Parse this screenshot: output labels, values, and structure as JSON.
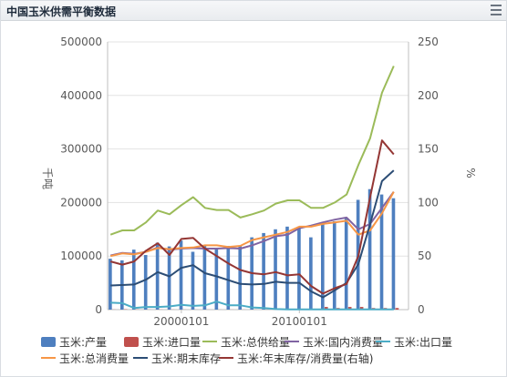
{
  "header": {
    "title": "中国玉米供需平衡数据"
  },
  "icons": {
    "menu": "hamburger-menu-icon"
  },
  "chart_data": {
    "type": "bar+line",
    "left_axis": {
      "label": "千吨",
      "ticks": [
        "0",
        "100000",
        "200000",
        "300000",
        "400000",
        "500000"
      ],
      "range": [
        0,
        500000
      ]
    },
    "right_axis": {
      "label": "%",
      "ticks": [
        "0",
        "50",
        "100",
        "150",
        "200",
        "250"
      ],
      "range": [
        0,
        250
      ]
    },
    "x_axis": {
      "start": 1993.75,
      "end": 2019.25,
      "tick_labels": [
        {
          "label": "20000101",
          "x": 2000
        },
        {
          "label": "20100101",
          "x": 2010
        }
      ]
    },
    "bar_series": [
      {
        "name": "玉米:产量",
        "color": "#4e7fbf",
        "x": [
          1994,
          1995,
          1996,
          1997,
          1998,
          1999,
          2000,
          2001,
          2002,
          2003,
          2004,
          2005,
          2006,
          2007,
          2008,
          2009,
          2010,
          2011,
          2012,
          2013,
          2014,
          2015,
          2016,
          2017,
          2018
        ],
        "values": [
          95000,
          92000,
          112000,
          102000,
          125000,
          118000,
          129000,
          108000,
          120000,
          115000,
          119000,
          120000,
          135000,
          143000,
          150000,
          155000,
          155000,
          135000,
          160000,
          165000,
          170000,
          205000,
          225000,
          215000,
          208000
        ]
      },
      {
        "name": "玉米:进口量",
        "color": "#c0504d",
        "x": [
          1994,
          1995,
          1996,
          1997,
          1998,
          1999,
          2000,
          2001,
          2002,
          2003,
          2004,
          2005,
          2006,
          2007,
          2008,
          2009,
          2010,
          2011,
          2012,
          2013,
          2014,
          2015,
          2016,
          2017,
          2018
        ],
        "values": [
          200,
          600,
          400,
          200,
          200,
          200,
          100,
          100,
          100,
          100,
          100,
          100,
          100,
          100,
          100,
          100,
          300,
          1500,
          5000,
          3000,
          5000,
          5000,
          3000,
          3000,
          3000
        ]
      }
    ],
    "line_series": [
      {
        "name": "玉米:总供给量",
        "color": "#9bbb59",
        "axis": "left",
        "x": [
          1994,
          1995,
          1996,
          1997,
          1998,
          1999,
          2000,
          2001,
          2002,
          2003,
          2004,
          2005,
          2006,
          2007,
          2008,
          2009,
          2010,
          2011,
          2012,
          2013,
          2014,
          2015,
          2016,
          2017,
          2018
        ],
        "values": [
          140000,
          148000,
          148000,
          163000,
          185000,
          178000,
          195000,
          210000,
          190000,
          186000,
          186000,
          172000,
          178000,
          185000,
          198000,
          204000,
          204000,
          190000,
          190000,
          200000,
          215000,
          270000,
          320000,
          405000,
          455000
        ]
      },
      {
        "name": "玉米:国内消费量",
        "color": "#8064a2",
        "axis": "left",
        "x": [
          1994,
          1995,
          1996,
          1997,
          1998,
          1999,
          2000,
          2001,
          2002,
          2003,
          2004,
          2005,
          2006,
          2007,
          2008,
          2009,
          2010,
          2011,
          2012,
          2013,
          2014,
          2015,
          2016,
          2017,
          2018
        ],
        "values": [
          101000,
          106000,
          104000,
          108000,
          116000,
          112000,
          114000,
          115000,
          114000,
          114000,
          115000,
          114000,
          120000,
          128000,
          137000,
          140000,
          152000,
          157000,
          163000,
          168000,
          172000,
          150000,
          160000,
          190000,
          220000
        ]
      },
      {
        "name": "玉米:出口量",
        "color": "#4bacc6",
        "axis": "left",
        "x": [
          1994,
          1995,
          1996,
          1997,
          1998,
          1999,
          2000,
          2001,
          2002,
          2003,
          2004,
          2005,
          2006,
          2007,
          2008,
          2009,
          2010,
          2011,
          2012,
          2013,
          2014,
          2015,
          2016,
          2017,
          2018
        ],
        "values": [
          13000,
          12000,
          3000,
          5000,
          5000,
          6000,
          9000,
          7000,
          8000,
          15000,
          8000,
          8000,
          4000,
          3000,
          1000,
          500,
          500,
          500,
          500,
          500,
          500,
          500,
          500,
          500,
          500
        ]
      },
      {
        "name": "玉米:总消费量",
        "color": "#f79646",
        "axis": "left",
        "x": [
          1994,
          1995,
          1996,
          1997,
          1998,
          1999,
          2000,
          2001,
          2002,
          2003,
          2004,
          2005,
          2006,
          2007,
          2008,
          2009,
          2010,
          2011,
          2012,
          2013,
          2014,
          2015,
          2016,
          2017,
          2018
        ],
        "values": [
          100000,
          105000,
          103000,
          108000,
          115000,
          113000,
          115000,
          116000,
          120000,
          120000,
          117000,
          119000,
          130000,
          135000,
          140000,
          145000,
          155000,
          155000,
          160000,
          163000,
          166000,
          140000,
          148000,
          180000,
          220000
        ]
      },
      {
        "name": "玉米:期末库存",
        "color": "#2c4d75",
        "axis": "left",
        "x": [
          1994,
          1995,
          1996,
          1997,
          1998,
          1999,
          2000,
          2001,
          2002,
          2003,
          2004,
          2005,
          2006,
          2007,
          2008,
          2009,
          2010,
          2011,
          2012,
          2013,
          2014,
          2015,
          2016,
          2017,
          2018
        ],
        "values": [
          45000,
          46000,
          47000,
          56000,
          70000,
          62000,
          78000,
          83000,
          68000,
          62000,
          55000,
          48000,
          47000,
          48000,
          52000,
          50000,
          50000,
          34000,
          23000,
          36000,
          50000,
          85000,
          160000,
          240000,
          260000
        ]
      },
      {
        "name": "玉米:年末库存/消费量(右轴)",
        "color": "#943634",
        "axis": "right",
        "x": [
          1994,
          1995,
          1996,
          1997,
          1998,
          1999,
          2000,
          2001,
          2002,
          2003,
          2004,
          2005,
          2006,
          2007,
          2008,
          2009,
          2010,
          2011,
          2012,
          2013,
          2014,
          2015,
          2016,
          2017,
          2018
        ],
        "values": [
          45,
          42,
          45,
          55,
          62,
          51,
          66,
          67,
          57,
          50,
          43,
          37,
          34,
          33,
          35,
          32,
          33,
          22,
          15,
          20,
          24,
          50,
          105,
          158,
          145
        ]
      }
    ],
    "legend_placement": "bottom",
    "grid": "horizontal"
  }
}
